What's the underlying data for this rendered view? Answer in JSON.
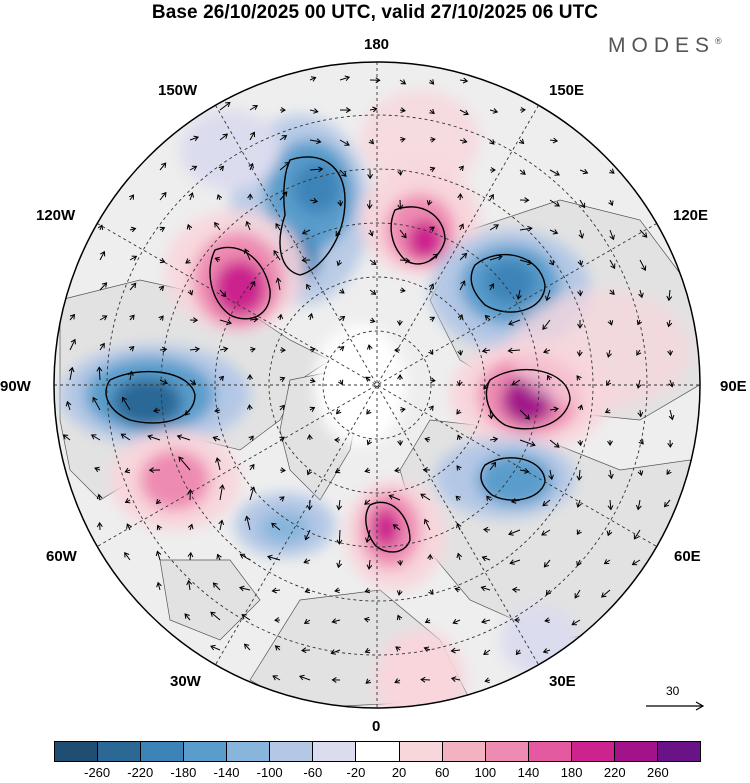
{
  "title": "Base 26/10/2025 00 UTC, valid 27/10/2025 06 UTC",
  "brand": "MODES",
  "brand_mark": "®",
  "longitude_labels": {
    "l180": "180",
    "l150e": "150E",
    "l120e": "120E",
    "l90e": "90E",
    "l60e": "60E",
    "l30e": "30E",
    "l0": "0",
    "l30w": "30W",
    "l60w": "60W",
    "l90w": "90W",
    "l120w": "120W",
    "l150w": "150W"
  },
  "reference_vector": {
    "label": "30"
  },
  "colorbar": {
    "colors": [
      "#1f4e72",
      "#2b6896",
      "#3c84b8",
      "#5a9dcc",
      "#87b5dc",
      "#b4c8e6",
      "#dcdcef",
      "#ffffff",
      "#f8d6dc",
      "#f3b2c2",
      "#ee8bb2",
      "#e35aa0",
      "#cc238e",
      "#a3128a",
      "#6a1287"
    ],
    "ticks": [
      "-260",
      "-220",
      "-180",
      "-140",
      "-100",
      "-60",
      "-20",
      "20",
      "60",
      "100",
      "140",
      "180",
      "220",
      "260"
    ]
  },
  "anomalies": [
    {
      "name": "anomaly-low-north-pacific",
      "value": -200
    },
    {
      "name": "anomaly-high-alaska",
      "value": 220
    },
    {
      "name": "anomaly-high-east-siberian-sea",
      "value": 190
    },
    {
      "name": "anomaly-low-east-siberia",
      "value": -170
    },
    {
      "name": "anomaly-high-central-siberia",
      "value": 230
    },
    {
      "name": "anomaly-low-west-siberia",
      "value": -160
    },
    {
      "name": "anomaly-high-barents-scandinavia",
      "value": 170
    },
    {
      "name": "anomaly-low-hudson-bay",
      "value": -200
    },
    {
      "name": "anomaly-high-labrador",
      "value": 130
    },
    {
      "name": "anomaly-low-greenland-sea",
      "value": -80
    },
    {
      "name": "anomaly-low-north-atlantic",
      "value": -120
    },
    {
      "name": "anomaly-high-east-europe",
      "value": 90
    },
    {
      "name": "anomaly-low-north-africa",
      "value": -60
    }
  ]
}
